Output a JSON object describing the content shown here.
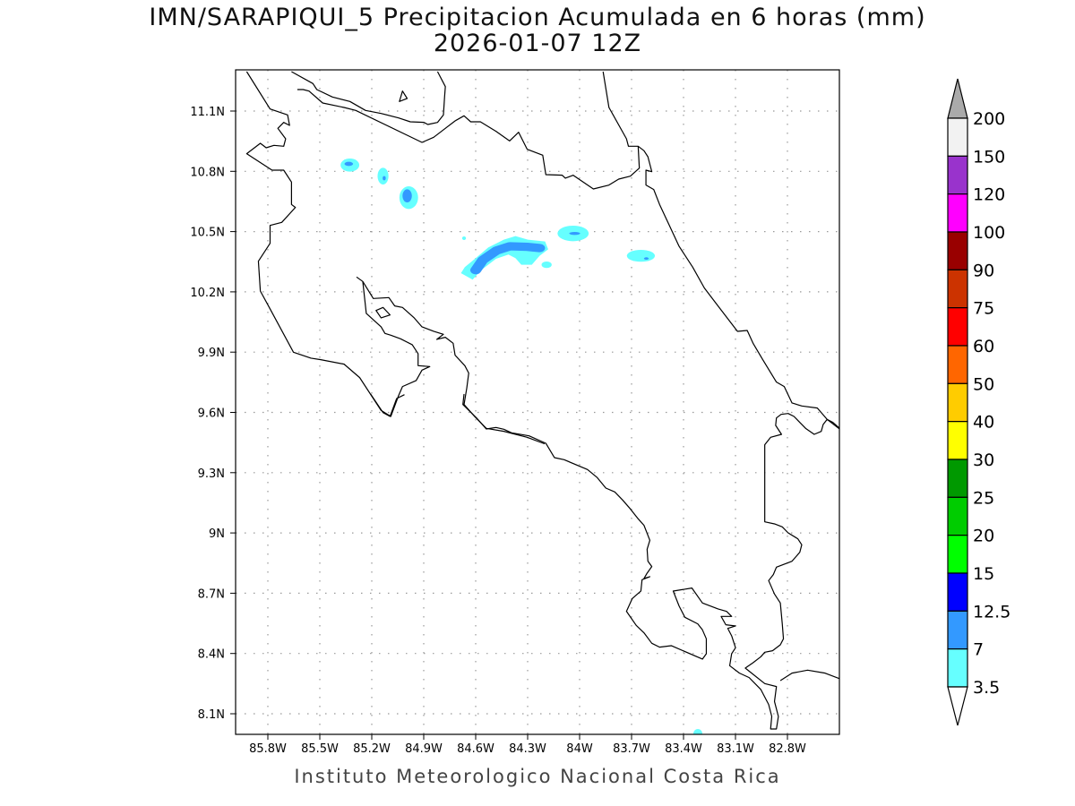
{
  "title": {
    "line1": "IMN/SARAPIQUI_5 Precipitacion Acumulada en 6 horas (mm)",
    "line2": "2026-01-07 12Z"
  },
  "footer": "Instituto Meteorologico Nacional Costa Rica",
  "map": {
    "lon_ticks": [
      {
        "value": -85.8,
        "label": "85.8W"
      },
      {
        "value": -85.5,
        "label": "85.5W"
      },
      {
        "value": -85.2,
        "label": "85.2W"
      },
      {
        "value": -84.9,
        "label": "84.9W"
      },
      {
        "value": -84.6,
        "label": "84.6W"
      },
      {
        "value": -84.3,
        "label": "84.3W"
      },
      {
        "value": -84.0,
        "label": "84W"
      },
      {
        "value": -83.7,
        "label": "83.7W"
      },
      {
        "value": -83.4,
        "label": "83.4W"
      },
      {
        "value": -83.1,
        "label": "83.1W"
      },
      {
        "value": -82.8,
        "label": "82.8W"
      }
    ],
    "lat_ticks": [
      {
        "value": 11.1,
        "label": "11.1N"
      },
      {
        "value": 10.8,
        "label": "10.8N"
      },
      {
        "value": 10.5,
        "label": "10.5N"
      },
      {
        "value": 10.2,
        "label": "10.2N"
      },
      {
        "value": 9.9,
        "label": "9.9N"
      },
      {
        "value": 9.6,
        "label": "9.6N"
      },
      {
        "value": 9.3,
        "label": "9.3N"
      },
      {
        "value": 9.0,
        "label": "9N"
      },
      {
        "value": 8.7,
        "label": "8.7N"
      },
      {
        "value": 8.4,
        "label": "8.4N"
      },
      {
        "value": 8.1,
        "label": "8.1N"
      }
    ]
  },
  "colorbar": {
    "labels": [
      "200",
      "150",
      "120",
      "100",
      "90",
      "75",
      "60",
      "50",
      "40",
      "30",
      "25",
      "20",
      "15",
      "12.5",
      "7",
      "3.5"
    ],
    "colors": [
      "#f2f2f2",
      "#9933cc",
      "#ff00ff",
      "#990000",
      "#cc3300",
      "#ff0000",
      "#ff6600",
      "#ffcc00",
      "#ffff00",
      "#009900",
      "#00cc00",
      "#00ff00",
      "#0000ff",
      "#3399ff",
      "#66ffff"
    ],
    "over_color": "#aaaaaa",
    "under_color": "#ffffff"
  },
  "colors": {
    "light": "#66ffff",
    "medium": "#3399ff"
  }
}
